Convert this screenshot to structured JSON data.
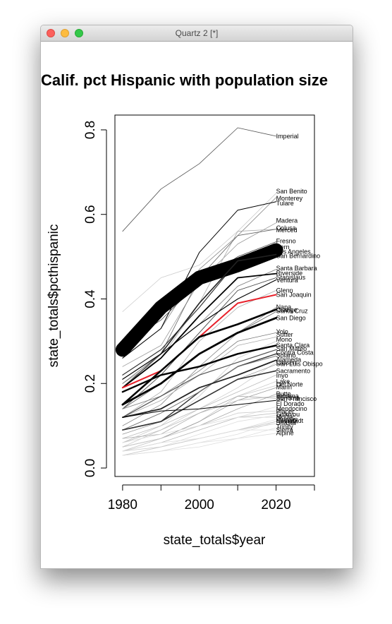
{
  "window": {
    "title": "Quartz 2 [*]"
  },
  "colors": {
    "highlight": "#e8202a",
    "ink": "#000000"
  },
  "chart_data": {
    "type": "line",
    "title": "Calif. pct Hispanic with population size",
    "xlabel": "state_totals$year",
    "ylabel": "state_totals$pcthispanic",
    "xlim": [
      1978,
      2030
    ],
    "ylim": [
      -0.02,
      0.835
    ],
    "x_ticks": [
      1980,
      2000,
      2020
    ],
    "y_ticks": [
      0.0,
      0.2,
      0.4,
      0.6,
      0.8
    ],
    "x_tick_labels": [
      "1980",
      "2000",
      "2020"
    ],
    "y_tick_labels": [
      "0.0",
      "0.2",
      "0.4",
      "0.6",
      "0.8"
    ],
    "years": [
      1980,
      1990,
      2000,
      2010,
      2020
    ],
    "series": [
      {
        "name": "Imperial",
        "values": [
          0.56,
          0.66,
          0.72,
          0.805,
          0.785
        ],
        "color": "#555555",
        "width": 0.8
      },
      {
        "name": "San Benito",
        "values": [
          0.37,
          0.45,
          0.48,
          0.56,
          0.65
        ],
        "color": "#cccccc",
        "width": 0.8
      },
      {
        "name": "Monterey",
        "values": [
          0.26,
          0.33,
          0.47,
          0.55,
          0.64
        ],
        "color": "#888888",
        "width": 0.8
      },
      {
        "name": "Tulare",
        "values": [
          0.26,
          0.33,
          0.51,
          0.61,
          0.63
        ],
        "color": "#000000",
        "width": 1.0
      },
      {
        "name": "Madera",
        "values": [
          0.24,
          0.29,
          0.44,
          0.53,
          0.58
        ],
        "color": "#999999",
        "width": 0.8
      },
      {
        "name": "Colusa",
        "values": [
          0.2,
          0.26,
          0.39,
          0.56,
          0.565
        ],
        "color": "#aaaaaa",
        "width": 0.8
      },
      {
        "name": "Merced",
        "values": [
          0.2,
          0.27,
          0.45,
          0.55,
          0.565
        ],
        "color": "#666666",
        "width": 0.8
      },
      {
        "name": "Fresno",
        "values": [
          0.29,
          0.35,
          0.44,
          0.5,
          0.535
        ],
        "color": "#555555",
        "width": 0.9
      },
      {
        "name": "Kern",
        "values": [
          0.22,
          0.28,
          0.38,
          0.49,
          0.52
        ],
        "color": "#333333",
        "width": 1.2
      },
      {
        "name": "Los Angeles",
        "values": [
          0.28,
          0.38,
          0.45,
          0.48,
          0.515
        ],
        "color": "#000000",
        "width": 20
      },
      {
        "name": "San Bernardino",
        "values": [
          0.19,
          0.27,
          0.39,
          0.49,
          0.505
        ],
        "color": "#222222",
        "width": 1.6
      },
      {
        "name": "Santa Barbara",
        "values": [
          0.19,
          0.27,
          0.34,
          0.43,
          0.47
        ],
        "color": "#777777",
        "width": 0.8
      },
      {
        "name": "Riverside",
        "values": [
          0.19,
          0.26,
          0.36,
          0.45,
          0.46
        ],
        "color": "#000000",
        "width": 1.8
      },
      {
        "name": "Stanislaus",
        "values": [
          0.14,
          0.22,
          0.32,
          0.42,
          0.45
        ],
        "color": "#444444",
        "width": 0.9
      },
      {
        "name": "Ventura",
        "values": [
          0.21,
          0.27,
          0.34,
          0.4,
          0.445
        ],
        "color": "#000000",
        "width": 1.2
      },
      {
        "name": "Glenn",
        "values": [
          0.12,
          0.18,
          0.3,
          0.38,
          0.42
        ],
        "color": "#aaaaaa",
        "width": 0.8
      },
      {
        "name": "San Joaquin",
        "values": [
          0.19,
          0.23,
          0.31,
          0.39,
          0.41
        ],
        "color": "#e8202a",
        "width": 2.0
      },
      {
        "name": "Napa",
        "values": [
          0.1,
          0.15,
          0.24,
          0.32,
          0.38
        ],
        "color": "#888888",
        "width": 0.8
      },
      {
        "name": "Orange",
        "values": [
          0.15,
          0.23,
          0.31,
          0.34,
          0.375
        ],
        "color": "#000000",
        "width": 2.6
      },
      {
        "name": "Santa Cruz",
        "values": [
          0.14,
          0.2,
          0.27,
          0.32,
          0.37
        ],
        "color": "#666666",
        "width": 0.9
      },
      {
        "name": "San Diego",
        "values": [
          0.15,
          0.2,
          0.27,
          0.32,
          0.355
        ],
        "color": "#000000",
        "width": 2.8
      },
      {
        "name": "Yolo",
        "values": [
          0.14,
          0.17,
          0.23,
          0.3,
          0.32
        ],
        "color": "#777777",
        "width": 0.8
      },
      {
        "name": "Sutter",
        "values": [
          0.12,
          0.16,
          0.22,
          0.29,
          0.31
        ],
        "color": "#aaaaaa",
        "width": 0.8
      },
      {
        "name": "Mono",
        "values": [
          0.06,
          0.1,
          0.17,
          0.26,
          0.3
        ],
        "color": "#cccccc",
        "width": 0.8
      },
      {
        "name": "Santa Clara",
        "values": [
          0.18,
          0.22,
          0.24,
          0.27,
          0.29
        ],
        "color": "#000000",
        "width": 2.4
      },
      {
        "name": "San Mateo",
        "values": [
          0.12,
          0.17,
          0.22,
          0.25,
          0.28
        ],
        "color": "#555555",
        "width": 1.2
      },
      {
        "name": "Contra Costa",
        "values": [
          0.09,
          0.11,
          0.18,
          0.24,
          0.27
        ],
        "color": "#333333",
        "width": 1.4
      },
      {
        "name": "Solano",
        "values": [
          0.09,
          0.13,
          0.18,
          0.24,
          0.265
        ],
        "color": "#777777",
        "width": 1.0
      },
      {
        "name": "Alameda",
        "values": [
          0.12,
          0.14,
          0.19,
          0.22,
          0.255
        ],
        "color": "#222222",
        "width": 1.8
      },
      {
        "name": "Lassen",
        "values": [
          0.05,
          0.09,
          0.14,
          0.19,
          0.25
        ],
        "color": "#cccccc",
        "width": 0.8
      },
      {
        "name": "San Luis Obispo",
        "values": [
          0.08,
          0.11,
          0.16,
          0.21,
          0.245
        ],
        "color": "#999999",
        "width": 0.8
      },
      {
        "name": "Sacramento",
        "values": [
          0.09,
          0.11,
          0.16,
          0.21,
          0.23
        ],
        "color": "#333333",
        "width": 1.6
      },
      {
        "name": "Inyo",
        "values": [
          0.07,
          0.1,
          0.14,
          0.18,
          0.22
        ],
        "color": "#bbbbbb",
        "width": 0.8
      },
      {
        "name": "Lake",
        "values": [
          0.04,
          0.07,
          0.11,
          0.17,
          0.205
        ],
        "color": "#cccccc",
        "width": 0.8
      },
      {
        "name": "Del Norte",
        "values": [
          0.04,
          0.07,
          0.11,
          0.17,
          0.195
        ],
        "color": "#cccccc",
        "width": 0.8
      },
      {
        "name": "Marin",
        "values": [
          0.05,
          0.07,
          0.11,
          0.16,
          0.19
        ],
        "color": "#999999",
        "width": 0.8
      },
      {
        "name": "Butte",
        "values": [
          0.05,
          0.07,
          0.1,
          0.14,
          0.175
        ],
        "color": "#aaaaaa",
        "width": 0.8
      },
      {
        "name": "Tehama",
        "values": [
          0.06,
          0.09,
          0.13,
          0.16,
          0.17
        ],
        "color": "#bbbbbb",
        "width": 0.8
      },
      {
        "name": "Sonoma",
        "values": [
          0.07,
          0.08,
          0.13,
          0.17,
          0.165
        ],
        "color": "#aaaaaa",
        "width": 0.8
      },
      {
        "name": "San Francisco",
        "values": [
          0.12,
          0.135,
          0.14,
          0.15,
          0.16
        ],
        "color": "#000000",
        "width": 1.0
      },
      {
        "name": "El Dorado",
        "values": [
          0.04,
          0.06,
          0.09,
          0.12,
          0.145
        ],
        "color": "#dddddd",
        "width": 0.8
      },
      {
        "name": "Mendocino",
        "values": [
          0.05,
          0.07,
          0.1,
          0.13,
          0.135
        ],
        "color": "#cccccc",
        "width": 0.8
      },
      {
        "name": "Placer",
        "values": [
          0.04,
          0.06,
          0.09,
          0.12,
          0.13
        ],
        "color": "#bbbbbb",
        "width": 0.8
      },
      {
        "name": "Siskiyou",
        "values": [
          0.03,
          0.05,
          0.08,
          0.11,
          0.125
        ],
        "color": "#dddddd",
        "width": 0.8
      },
      {
        "name": "Modoc",
        "values": [
          0.06,
          0.08,
          0.1,
          0.12,
          0.12
        ],
        "color": "#dddddd",
        "width": 0.8
      },
      {
        "name": "Plumas",
        "values": [
          0.03,
          0.05,
          0.07,
          0.09,
          0.115
        ],
        "color": "#dddddd",
        "width": 0.8
      },
      {
        "name": "Nevada",
        "values": [
          0.03,
          0.04,
          0.06,
          0.08,
          0.11
        ],
        "color": "#dddddd",
        "width": 0.8
      },
      {
        "name": "Shasta",
        "values": [
          0.03,
          0.05,
          0.07,
          0.09,
          0.105
        ],
        "color": "#cccccc",
        "width": 0.8
      },
      {
        "name": "Humboldt",
        "values": [
          0.04,
          0.05,
          0.07,
          0.09,
          0.11
        ],
        "color": "#cccccc",
        "width": 0.8
      },
      {
        "name": "Trinity",
        "values": [
          0.03,
          0.04,
          0.05,
          0.07,
          0.095
        ],
        "color": "#dddddd",
        "width": 0.8
      },
      {
        "name": "Sierra",
        "values": [
          0.04,
          0.06,
          0.07,
          0.09,
          0.09
        ],
        "color": "#dddddd",
        "width": 0.8
      },
      {
        "name": "Alpine",
        "values": [
          0.03,
          0.04,
          0.06,
          0.07,
          0.082
        ],
        "color": "#dddddd",
        "width": 0.8
      }
    ],
    "county_labels": [
      {
        "text": "Imperial",
        "y": 0.785
      },
      {
        "text": "San Benito",
        "y": 0.655
      },
      {
        "text": "Monterey",
        "y": 0.638
      },
      {
        "text": "Tulare",
        "y": 0.626
      },
      {
        "text": "Madera",
        "y": 0.585
      },
      {
        "text": "Colusa",
        "y": 0.568
      },
      {
        "text": "Merced",
        "y": 0.563
      },
      {
        "text": "Fresno",
        "y": 0.537
      },
      {
        "text": "Kern",
        "y": 0.523
      },
      {
        "text": "Los Angeles",
        "y": 0.512
      },
      {
        "text": "San Bernardino",
        "y": 0.502
      },
      {
        "text": "Santa Barbara",
        "y": 0.473
      },
      {
        "text": "Riverside",
        "y": 0.461
      },
      {
        "text": "Stanislaus",
        "y": 0.451
      },
      {
        "text": "Ventura",
        "y": 0.444
      },
      {
        "text": "Glenn",
        "y": 0.42
      },
      {
        "text": "San Joaquin",
        "y": 0.41
      },
      {
        "text": "Napa",
        "y": 0.381
      },
      {
        "text": "Orange",
        "y": 0.374
      },
      {
        "text": "Santa Cruz",
        "y": 0.372
      },
      {
        "text": "San Diego",
        "y": 0.355
      },
      {
        "text": "Yolo",
        "y": 0.322
      },
      {
        "text": "Sutter",
        "y": 0.316
      },
      {
        "text": "Mono",
        "y": 0.304
      },
      {
        "text": "Santa Clara",
        "y": 0.291
      },
      {
        "text": "San Mateo",
        "y": 0.282
      },
      {
        "text": "Contra Costa",
        "y": 0.273
      },
      {
        "text": "Solano",
        "y": 0.266
      },
      {
        "text": "Alameda",
        "y": 0.256
      },
      {
        "text": "Lassen",
        "y": 0.25
      },
      {
        "text": "San Luis Obispo",
        "y": 0.246
      },
      {
        "text": "Sacramento",
        "y": 0.23
      },
      {
        "text": "Inyo",
        "y": 0.219
      },
      {
        "text": "Lake",
        "y": 0.205
      },
      {
        "text": "Del Norte",
        "y": 0.198
      },
      {
        "text": "Marin",
        "y": 0.191
      },
      {
        "text": "Butte",
        "y": 0.175
      },
      {
        "text": "Tehama",
        "y": 0.17
      },
      {
        "text": "Sonoma",
        "y": 0.166
      },
      {
        "text": "San Francisco",
        "y": 0.164
      },
      {
        "text": "El Dorado",
        "y": 0.152
      },
      {
        "text": "Mendocino",
        "y": 0.14
      },
      {
        "text": "Placer",
        "y": 0.134
      },
      {
        "text": "Siskiyou",
        "y": 0.127
      },
      {
        "text": "Modoc",
        "y": 0.121
      },
      {
        "text": "Plumas",
        "y": 0.115
      },
      {
        "text": "Nevada",
        "y": 0.111
      },
      {
        "text": "Shasta",
        "y": 0.107
      },
      {
        "text": "Humboldt",
        "y": 0.112
      },
      {
        "text": "Trinity",
        "y": 0.098
      },
      {
        "text": "Sierra",
        "y": 0.09
      },
      {
        "text": "Alpine",
        "y": 0.083
      }
    ]
  }
}
